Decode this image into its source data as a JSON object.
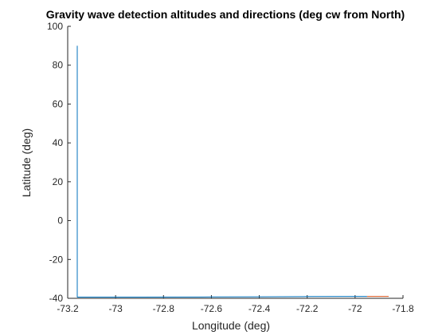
{
  "chart_data": {
    "type": "line",
    "title": "Gravity wave detection altitudes and directions (deg cw from North)",
    "xlabel": "Longitude (deg)",
    "ylabel": "Latitude (deg)",
    "xlim": [
      -73.2,
      -71.8
    ],
    "ylim": [
      -40,
      100
    ],
    "xticks": [
      -73.2,
      -73,
      -72.8,
      -72.6,
      -72.4,
      -72.2,
      -72,
      -71.8
    ],
    "xtick_labels": [
      "-73.2",
      "-73",
      "-72.8",
      "-72.6",
      "-72.4",
      "-72.2",
      "-72",
      "-71.8"
    ],
    "yticks": [
      -40,
      -20,
      0,
      20,
      40,
      60,
      80,
      100
    ],
    "ytick_labels": [
      "-40",
      "-20",
      "0",
      "20",
      "40",
      "60",
      "80",
      "100"
    ],
    "grid": false,
    "box": false,
    "series": [
      {
        "color": "#0072BD",
        "x": [
          -73.16,
          -73.16,
          -73.16,
          -72.9,
          -72.6,
          -72.4,
          -72.2,
          -71.95
        ],
        "y": [
          90,
          -39.5,
          -39.4,
          -39.4,
          -39.3,
          -39.2,
          -39.1,
          -39.0
        ]
      },
      {
        "color": "#D95319",
        "x": [
          -71.95,
          -71.9,
          -71.86
        ],
        "y": [
          -39.0,
          -39.0,
          -39.0
        ]
      }
    ]
  }
}
